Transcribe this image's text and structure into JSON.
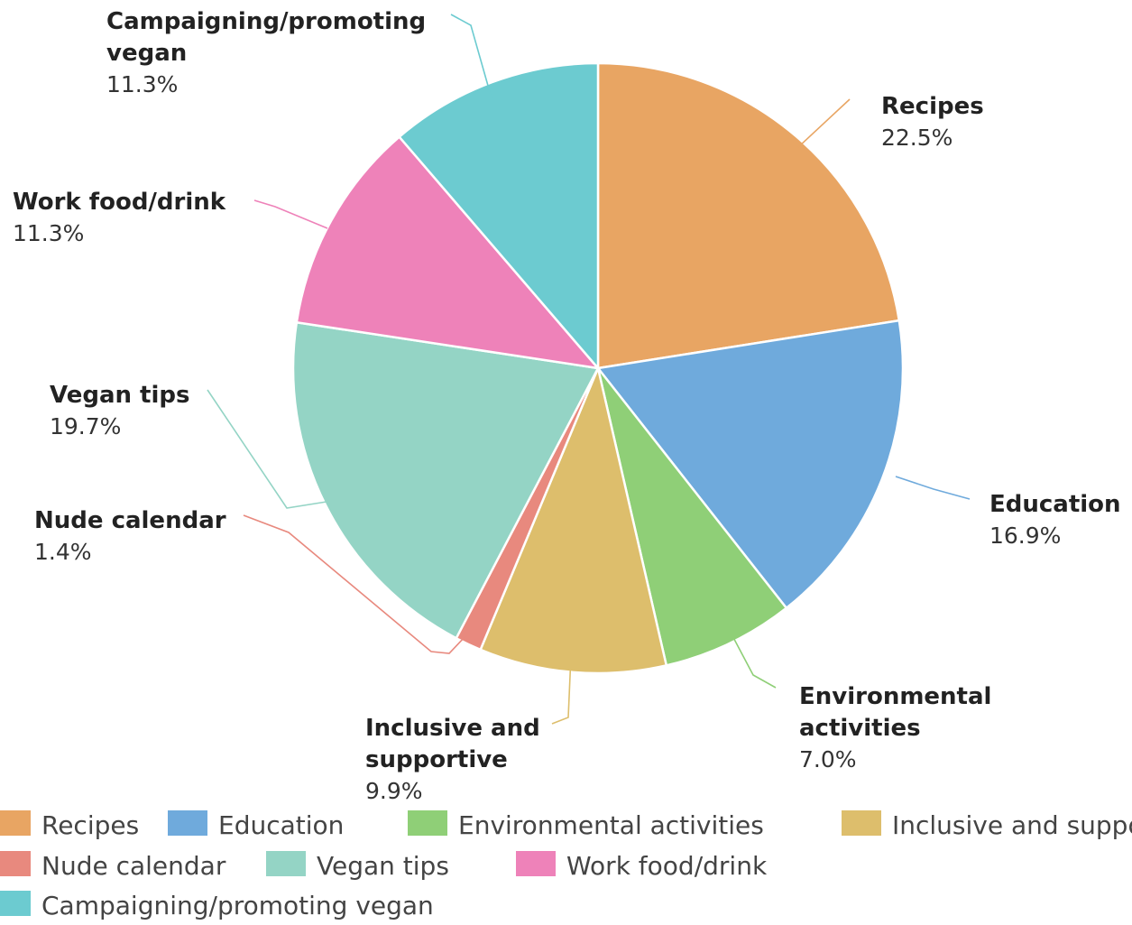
{
  "chart_data": {
    "type": "pie",
    "title": "",
    "slices": [
      {
        "label": "Recipes",
        "value": 22.5,
        "value_label": "22.5%",
        "color": "#E8A563"
      },
      {
        "label": "Education",
        "value": 16.9,
        "value_label": "16.9%",
        "color": "#6FAADC"
      },
      {
        "label": "Environmental activities",
        "callout_lines": [
          "Environmental",
          "activities"
        ],
        "value": 7.0,
        "value_label": "7.0%",
        "color": "#8FCF77"
      },
      {
        "label": "Inclusive and supportive",
        "callout_lines": [
          "Inclusive and",
          "supportive"
        ],
        "value": 9.9,
        "value_label": "9.9%",
        "color": "#DDBE6C"
      },
      {
        "label": "Nude calendar",
        "value": 1.4,
        "value_label": "1.4%",
        "color": "#E8897E"
      },
      {
        "label": "Vegan tips",
        "value": 19.7,
        "value_label": "19.7%",
        "color": "#94D4C5"
      },
      {
        "label": "Work food/drink",
        "value": 11.3,
        "value_label": "11.3%",
        "color": "#EE82B9"
      },
      {
        "label": "Campaigning/promoting vegan",
        "callout_lines": [
          "Campaigning/promoting",
          "vegan"
        ],
        "value": 11.3,
        "value_label": "11.3%",
        "color": "#6CCBD0"
      }
    ],
    "legend": {
      "position": "bottom",
      "rows": [
        [
          "Recipes",
          "Education",
          "Environmental activities",
          "Inclusive and supportive"
        ],
        [
          "Nude calendar",
          "Vegan tips",
          "Work food/drink"
        ],
        [
          "Campaigning/promoting vegan"
        ]
      ]
    }
  }
}
